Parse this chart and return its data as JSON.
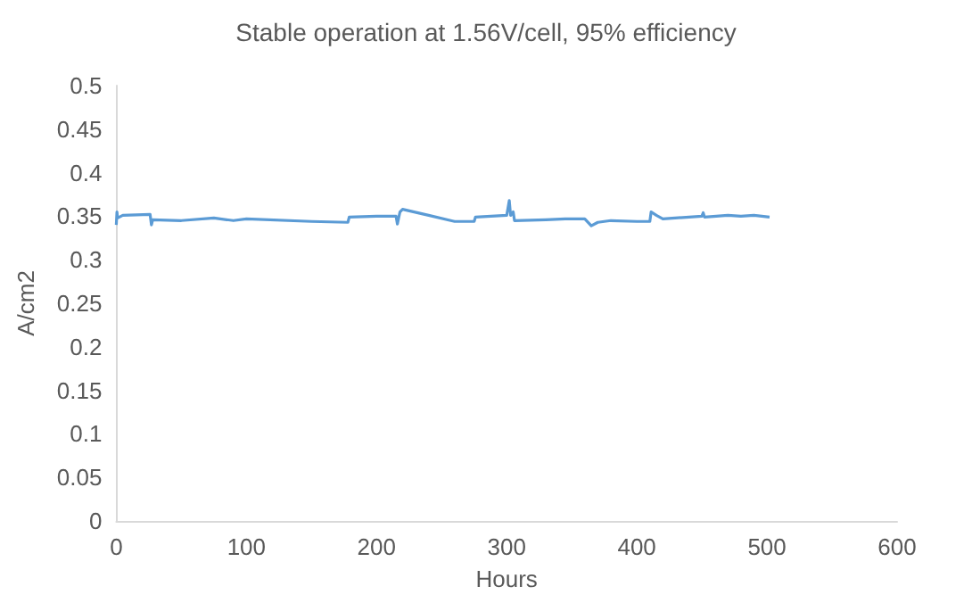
{
  "chart_data": {
    "type": "line",
    "title": "Stable operation at 1.56V/cell, 95% efficiency",
    "xlabel": "Hours",
    "ylabel": "A/cm2",
    "xlim": [
      0,
      600
    ],
    "xticks": [
      0,
      100,
      200,
      300,
      400,
      500,
      600
    ],
    "ylim": [
      0,
      0.5
    ],
    "yticks": [
      0,
      0.05,
      0.1,
      0.15,
      0.2,
      0.25,
      0.3,
      0.35,
      0.4,
      0.45,
      0.5
    ],
    "grid": false,
    "marker": "none",
    "line_style": "solid",
    "series": [
      {
        "color": "#5b9bd5",
        "x": [
          0,
          0.5,
          1,
          5,
          26,
          27,
          28,
          50,
          75,
          90,
          100,
          150,
          178,
          179,
          200,
          215,
          216,
          218,
          220,
          240,
          260,
          275,
          276,
          300,
          302,
          303,
          305,
          306,
          330,
          345,
          360,
          365,
          370,
          380,
          400,
          410,
          411,
          415,
          420,
          450,
          451,
          452,
          470,
          480,
          490,
          502
        ],
        "values": [
          0.34,
          0.355,
          0.348,
          0.351,
          0.352,
          0.34,
          0.346,
          0.345,
          0.348,
          0.345,
          0.347,
          0.344,
          0.343,
          0.349,
          0.35,
          0.35,
          0.341,
          0.355,
          0.358,
          0.351,
          0.344,
          0.344,
          0.349,
          0.351,
          0.368,
          0.351,
          0.355,
          0.345,
          0.346,
          0.347,
          0.347,
          0.339,
          0.343,
          0.345,
          0.344,
          0.344,
          0.355,
          0.351,
          0.347,
          0.35,
          0.354,
          0.349,
          0.351,
          0.35,
          0.351,
          0.349
        ]
      }
    ]
  }
}
